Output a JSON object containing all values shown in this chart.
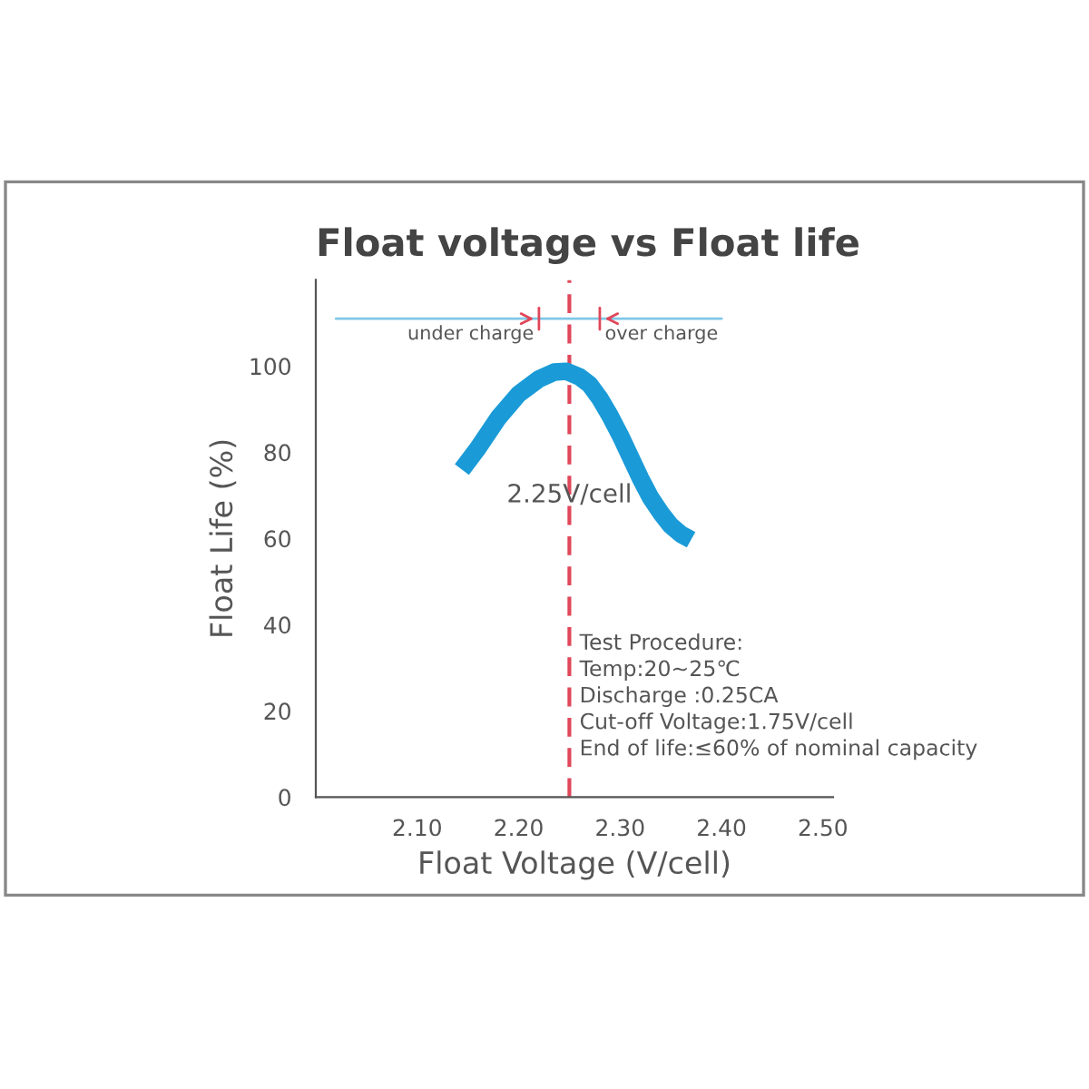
{
  "chart_data": {
    "type": "line",
    "title": "Float voltage vs Float life",
    "xlabel": "Float Voltage (V/cell)",
    "ylabel": "Float Life (%)",
    "x": [
      2.144,
      2.16,
      2.18,
      2.2,
      2.22,
      2.235,
      2.247,
      2.26,
      2.27,
      2.28,
      2.29,
      2.3,
      2.31,
      2.32,
      2.33,
      2.34,
      2.35,
      2.36,
      2.37
    ],
    "series": [
      {
        "color": "#1a9bd7",
        "values": [
          76,
          81,
          88,
          93.5,
          97,
          98.6,
          98.8,
          97.5,
          95.7,
          92.5,
          88.5,
          84,
          79,
          74,
          69.5,
          66,
          63,
          61,
          59.7
        ]
      }
    ],
    "xlim": [
      2.0,
      2.51
    ],
    "ylim": [
      0,
      120
    ],
    "xticks": [
      {
        "value": 2.1,
        "label": "2.10"
      },
      {
        "value": 2.2,
        "label": "2.20"
      },
      {
        "value": 2.3,
        "label": "2.30"
      },
      {
        "value": 2.4,
        "label": "2.40"
      },
      {
        "value": 2.5,
        "label": "2.50"
      }
    ],
    "yticks": [
      0,
      20,
      40,
      60,
      80,
      100
    ],
    "grid": false,
    "marker": "none",
    "line_style": "solid",
    "legend": false,
    "ref_lines": [
      {
        "axis": "x",
        "value": 2.25,
        "label": "2.25V/cell",
        "color": "#e0475a",
        "line_style": "dashed"
      }
    ],
    "annotations": [
      "under charge",
      "over charge",
      "Test Procedure:\nTemp:20~25℃\nDischarge :0.25CA\nCut-off Voltage:1.75V/cell\nEnd of life:≤60% of nominal capacity"
    ]
  }
}
